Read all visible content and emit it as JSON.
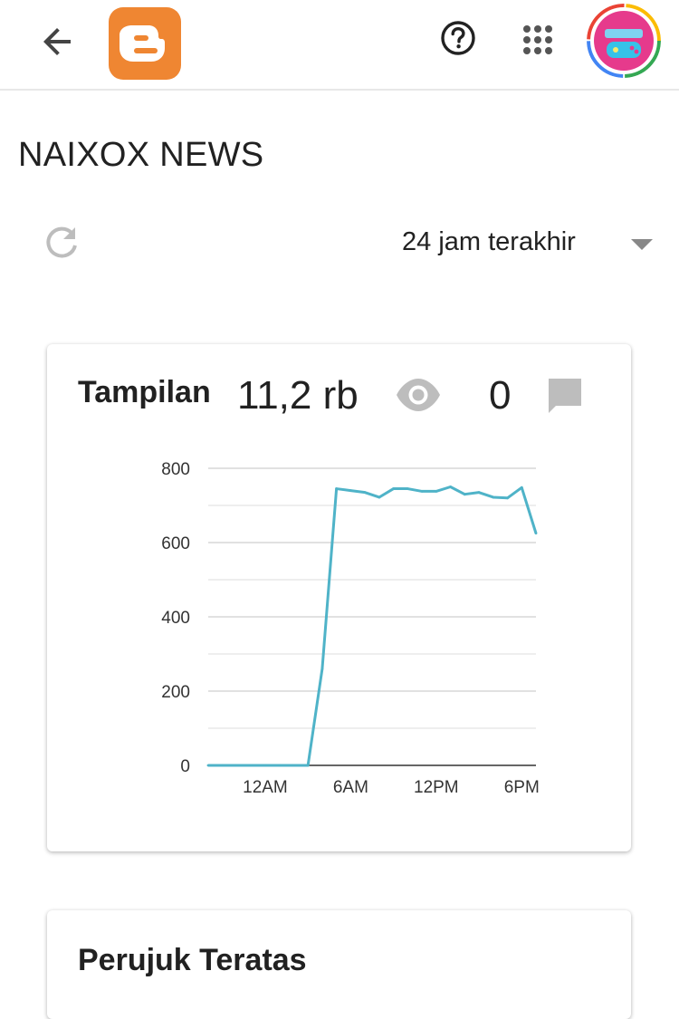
{
  "appbar": {
    "back_icon": "arrow-left-icon",
    "logo_icon": "blogger-logo",
    "help_icon": "help-circle-icon",
    "apps_icon": "grid-apps-icon",
    "avatar_icon": "user-avatar",
    "logo_color": "#EF8632",
    "icon_color": "#444444"
  },
  "blog": {
    "title": "NAIXOX NEWS"
  },
  "filter": {
    "refresh_icon": "refresh-icon",
    "range_label": "24 jam terakhir",
    "caret_icon": "chevron-down-icon"
  },
  "stats_card": {
    "label": "Tampilan",
    "views": "11,2 rb",
    "views_icon": "eye-icon",
    "comments": "0",
    "comments_icon": "comment-icon",
    "icon_color": "#BDBDBD"
  },
  "chart_data": {
    "type": "line",
    "title": "",
    "xlabel": "",
    "ylabel": "",
    "ylim": [
      0,
      800
    ],
    "yticks": [
      0,
      200,
      400,
      600,
      800
    ],
    "xlim": [
      0,
      23
    ],
    "xticks": [
      {
        "x": 4,
        "label": "12AM"
      },
      {
        "x": 10,
        "label": "6AM"
      },
      {
        "x": 16,
        "label": "12PM"
      },
      {
        "x": 22,
        "label": "6PM"
      }
    ],
    "grid": true,
    "line_color": "#4FB3C8",
    "series": [
      {
        "values": [
          0,
          0,
          0,
          0,
          0,
          0,
          0,
          0,
          260,
          745,
          740,
          735,
          722,
          745,
          745,
          738,
          738,
          750,
          730,
          735,
          722,
          720,
          748,
          625
        ]
      }
    ]
  },
  "second_card": {
    "title": "Perujuk Teratas"
  }
}
